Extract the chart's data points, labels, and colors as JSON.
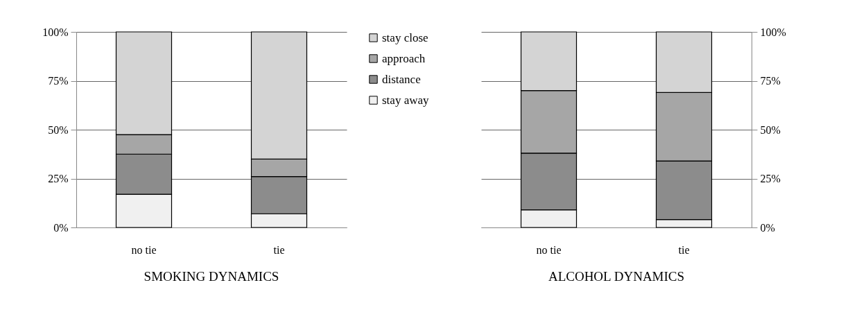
{
  "chart_data": [
    {
      "type": "bar",
      "stacked": true,
      "title": "SMOKING DYNAMICS",
      "categories": [
        "no tie",
        "tie"
      ],
      "ylim": [
        0,
        100
      ],
      "yticks": [
        {
          "value": 0,
          "label": "0%"
        },
        {
          "value": 25,
          "label": "25%"
        },
        {
          "value": 50,
          "label": "50%"
        },
        {
          "value": 75,
          "label": "75%"
        },
        {
          "value": 100,
          "label": "100%"
        }
      ],
      "grid": "y",
      "legend": "right",
      "series": [
        {
          "name": "stay away",
          "color": "#f0f0f0",
          "values": [
            17,
            7
          ]
        },
        {
          "name": "distance",
          "color": "#8c8c8c",
          "values": [
            20.5,
            19
          ]
        },
        {
          "name": "approach",
          "color": "#a6a6a6",
          "values": [
            10,
            9
          ]
        },
        {
          "name": "stay close",
          "color": "#d4d4d4",
          "values": [
            52.5,
            65
          ]
        }
      ]
    },
    {
      "type": "bar",
      "stacked": true,
      "title": "ALCOHOL DYNAMICS",
      "categories": [
        "no tie",
        "tie"
      ],
      "ylim": [
        0,
        100
      ],
      "yticks": [
        {
          "value": 0,
          "label": "0%"
        },
        {
          "value": 25,
          "label": "25%"
        },
        {
          "value": 50,
          "label": "50%"
        },
        {
          "value": 75,
          "label": "75%"
        },
        {
          "value": 100,
          "label": "100%"
        }
      ],
      "grid": "y",
      "series": [
        {
          "color": "#f0f0f0",
          "values": [
            9,
            4
          ]
        },
        {
          "color": "#8c8c8c",
          "values": [
            29,
            30
          ]
        },
        {
          "color": "#a6a6a6",
          "values": [
            32,
            35
          ]
        },
        {
          "color": "#d4d4d4",
          "values": [
            30,
            31
          ]
        }
      ]
    }
  ]
}
